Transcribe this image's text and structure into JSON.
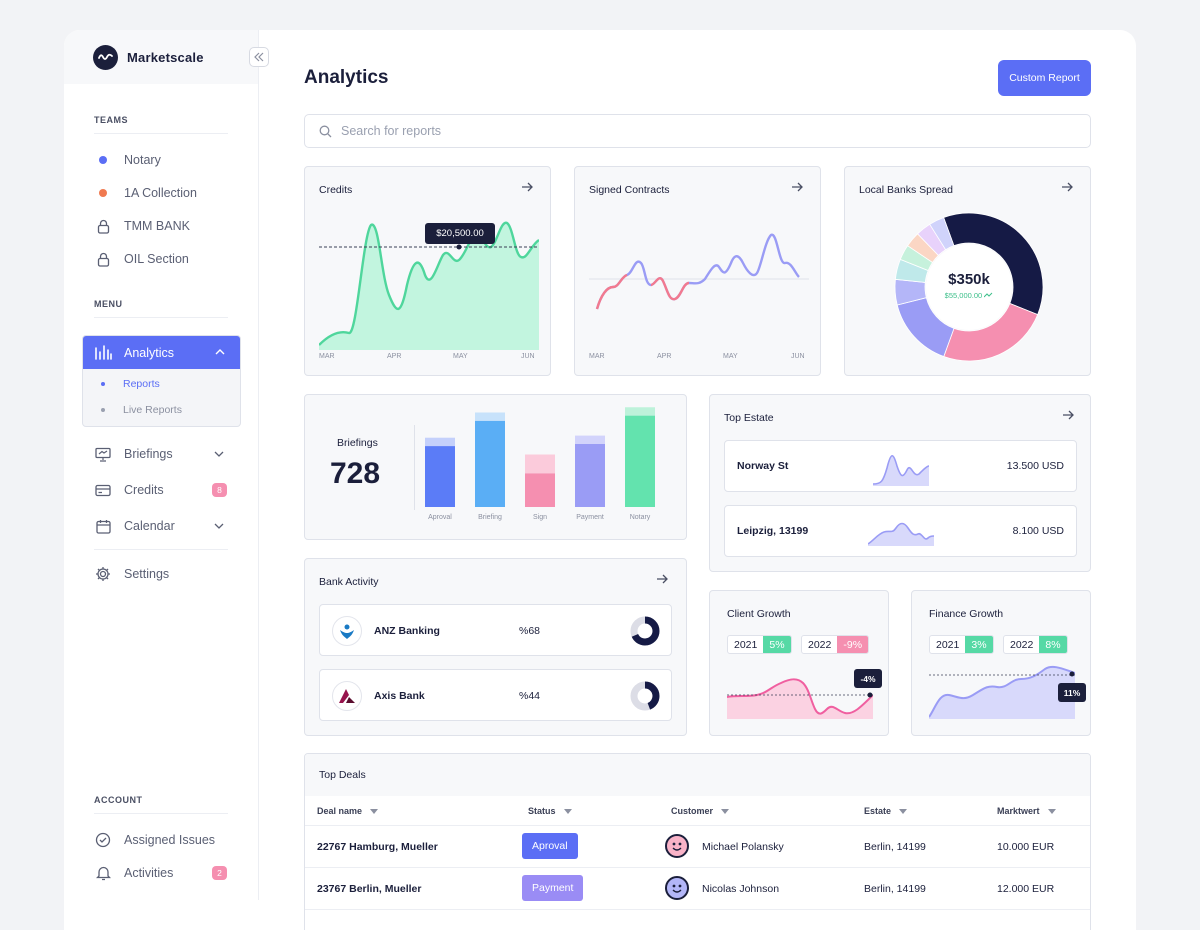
{
  "app": {
    "name": "Marketscale"
  },
  "sidebar": {
    "teams_title": "TEAMS",
    "teams": [
      {
        "label": "Notary",
        "icon": "dot-icon",
        "color": "#5b6ef5"
      },
      {
        "label": "1A Collection",
        "icon": "dot-icon",
        "color": "#f07a50"
      },
      {
        "label": "TMM BANK",
        "icon": "lock-icon"
      },
      {
        "label": "OIL Section",
        "icon": "lock-icon"
      }
    ],
    "menu_title": "MENU",
    "analytics": {
      "label": "Analytics",
      "sub": [
        "Reports",
        "Live Reports"
      ]
    },
    "menu": [
      {
        "label": "Briefings",
        "icon": "presentation-icon"
      },
      {
        "label": "Credits",
        "icon": "card-icon",
        "badge": "8"
      },
      {
        "label": "Calendar",
        "icon": "calendar-icon"
      },
      {
        "label": "Settings",
        "icon": "gear-icon"
      }
    ],
    "account_title": "ACCOUNT",
    "account": [
      {
        "label": "Assigned Issues",
        "icon": "check-circle-icon"
      },
      {
        "label": "Activities",
        "icon": "bell-icon",
        "badge": "2"
      }
    ]
  },
  "header": {
    "title": "Analytics",
    "button": "Custom Report"
  },
  "search": {
    "placeholder": "Search for reports"
  },
  "credits": {
    "title": "Credits",
    "tooltip": "$20,500.00",
    "months": [
      "MAR",
      "APR",
      "MAY",
      "JUN"
    ]
  },
  "signed": {
    "title": "Signed Contracts",
    "months": [
      "MAR",
      "APR",
      "MAY",
      "JUN"
    ]
  },
  "banks_spread": {
    "title": "Local Banks Spread",
    "total": "$350k",
    "sub": "$55,000.00"
  },
  "briefings": {
    "title": "Briefings",
    "value": "728"
  },
  "top_estate": {
    "title": "Top Estate",
    "rows": [
      {
        "name": "Norway St",
        "value": "13.500 USD"
      },
      {
        "name": "Leipzig, 13199",
        "value": "8.100 USD"
      }
    ]
  },
  "bank_activity": {
    "title": "Bank Activity",
    "rows": [
      {
        "name": "ANZ Banking",
        "pct": "%68"
      },
      {
        "name": "Axis Bank",
        "pct": "%44"
      }
    ]
  },
  "client_growth": {
    "title": "Client Growth",
    "y1": "2021",
    "v1": "5%",
    "y2": "2022",
    "v2": "-9%",
    "tag": "-4%"
  },
  "finance_growth": {
    "title": "Finance Growth",
    "y1": "2021",
    "v1": "3%",
    "y2": "2022",
    "v2": "8%",
    "tag": "11%"
  },
  "deals": {
    "title": "Top Deals",
    "columns": [
      "Deal name",
      "Status",
      "Customer",
      "Estate",
      "Marktwert"
    ],
    "rows": [
      {
        "deal": "22767 Hamburg, Mueller",
        "status": "Aproval",
        "customer": "Michael Polansky",
        "estate": "Berlin, 14199",
        "value": "10.000 EUR"
      },
      {
        "deal": "23767 Berlin, Mueller",
        "status": "Payment",
        "customer": "Nicolas Johnson",
        "estate": "Berlin, 14199",
        "value": "12.000 EUR"
      }
    ]
  },
  "chart_data": [
    {
      "type": "bar",
      "categories": [
        "Aproval",
        "Briefing",
        "Sign",
        "Payment",
        "Notary"
      ],
      "values": [
        58,
        82,
        32,
        60,
        87
      ],
      "secondary": [
        8,
        8,
        18,
        8,
        8
      ],
      "colors": [
        "#5b7cf7",
        "#5aaef5",
        "#f58fb0",
        "#9a9cf5",
        "#63e3ae"
      ],
      "light_colors": [
        "#c4d0fb",
        "#c7e2fb",
        "#fbcbdb",
        "#d2d3fb",
        "#bdf2da"
      ]
    },
    {
      "type": "pie",
      "title": "Local Banks Spread",
      "values": [
        33,
        22,
        14,
        5,
        4,
        3,
        3,
        3,
        3
      ],
      "colors": [
        "#151a45",
        "#f58fb0",
        "#9a9cf5",
        "#b4b6f8",
        "#bfe9ea",
        "#c6f1dc",
        "#fbd6c4",
        "#e8d2fb",
        "#d0d3fb"
      ]
    }
  ]
}
